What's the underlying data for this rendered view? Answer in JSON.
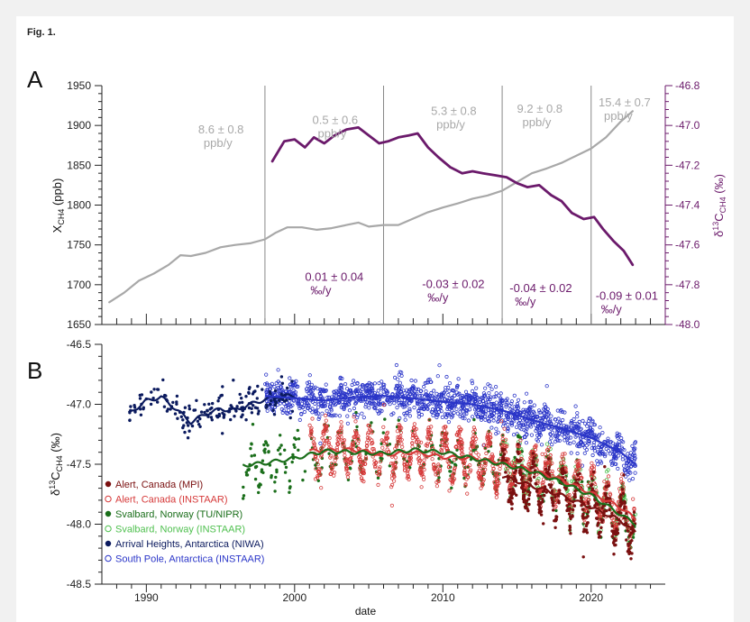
{
  "figure_title": "Fig. 1.",
  "colors": {
    "xch4": "#a8a8a8",
    "d13c": "#6b1a6b",
    "alert_mpi": "#7a1010",
    "alert_instaar": "#d63a3a",
    "svalbard_tu": "#1a6e1a",
    "svalbard_instaar": "#4fc04f",
    "arrival": "#0b1a5e",
    "southpole": "#2a35c8",
    "axis_right": "#6b1a6b"
  },
  "chart_data": [
    {
      "panel": "A",
      "type": "line",
      "x_range": [
        1987,
        2025
      ],
      "y_left": {
        "label": "XCH4 (ppb)",
        "range": [
          1650,
          1950
        ],
        "ticks": [
          "1650",
          "1700",
          "1750",
          "1800",
          "1850",
          "1900",
          "1950"
        ]
      },
      "y_right": {
        "label": "δ13CCH4 (‰)",
        "range": [
          -48.0,
          -46.8
        ],
        "ticks": [
          "-48.0",
          "-47.8",
          "-47.6",
          "-47.4",
          "-47.2",
          "-47.0",
          "-46.8"
        ]
      },
      "period_dividers": [
        1998,
        2006,
        2014,
        2020
      ],
      "series": [
        {
          "axis": "left",
          "x": [
            1987.5,
            1988.5,
            1989.5,
            1990.5,
            1991.5,
            1992.3,
            1993.0,
            1994.0,
            1995.0,
            1996.0,
            1997.0,
            1998.0,
            1998.7,
            1999.5,
            2000.5,
            2001.5,
            2002.5,
            2003.5,
            2004.3,
            2005.0,
            2006.0,
            2007.0,
            2008.0,
            2009.0,
            2010.0,
            2011.0,
            2012.0,
            2013.0,
            2014.0,
            2015.0,
            2016.0,
            2017.0,
            2018.0,
            2019.0,
            2020.0,
            2021.0,
            2022.0,
            2022.8
          ],
          "y": [
            1678,
            1690,
            1705,
            1714,
            1725,
            1737,
            1736,
            1740,
            1747,
            1750,
            1752,
            1757,
            1765,
            1772,
            1772,
            1769,
            1771,
            1775,
            1778,
            1773,
            1775,
            1775,
            1783,
            1791,
            1797,
            1802,
            1808,
            1812,
            1818,
            1829,
            1840,
            1846,
            1853,
            1862,
            1871,
            1885,
            1905,
            1918
          ]
        },
        {
          "axis": "right",
          "x": [
            1998.5,
            1999.3,
            2000.0,
            2000.7,
            2001.3,
            2002.0,
            2002.7,
            2003.5,
            2004.3,
            2005.0,
            2005.7,
            2006.3,
            2007.0,
            2007.7,
            2008.3,
            2009.0,
            2009.7,
            2010.5,
            2011.3,
            2012.0,
            2012.7,
            2013.5,
            2014.3,
            2015.0,
            2015.7,
            2016.5,
            2017.3,
            2018.0,
            2018.7,
            2019.5,
            2020.2,
            2020.8,
            2021.5,
            2022.2,
            2022.8
          ],
          "y": [
            -47.18,
            -47.08,
            -47.07,
            -47.11,
            -47.06,
            -47.09,
            -47.05,
            -47.02,
            -47.01,
            -47.05,
            -47.09,
            -47.08,
            -47.06,
            -47.05,
            -47.04,
            -47.11,
            -47.16,
            -47.21,
            -47.24,
            -47.23,
            -47.24,
            -47.25,
            -47.26,
            -47.29,
            -47.31,
            -47.3,
            -47.35,
            -47.38,
            -47.44,
            -47.47,
            -47.46,
            -47.52,
            -47.58,
            -47.63,
            -47.7
          ]
        }
      ],
      "annotations": [
        {
          "text_lines": [
            "8.6 ± 0.8",
            "ppb/y"
          ],
          "color": "xch4",
          "x": 1993.5,
          "y": 1890
        },
        {
          "text_lines": [
            "0.5 ± 0.6",
            "ppb/y"
          ],
          "color": "xch4",
          "x": 2001.2,
          "y": 1902
        },
        {
          "text_lines": [
            "5.3 ± 0.8",
            "ppb/y"
          ],
          "color": "xch4",
          "x": 2009.2,
          "y": 1913
        },
        {
          "text_lines": [
            "9.2 ± 0.8",
            "ppb/y"
          ],
          "color": "xch4",
          "x": 2015.0,
          "y": 1916
        },
        {
          "text_lines": [
            "15.4 ± 0.7",
            "ppb/y"
          ],
          "color": "xch4",
          "x": 2020.5,
          "y": 1924
        },
        {
          "text_lines": [
            "0.01 ± 0.04",
            "‰/y"
          ],
          "color": "d13c",
          "x": 2000.7,
          "y": 1705
        },
        {
          "text_lines": [
            "-0.03 ± 0.02",
            "‰/y"
          ],
          "color": "d13c",
          "x": 2008.6,
          "y": 1696
        },
        {
          "text_lines": [
            "-0.04 ± 0.02",
            "‰/y"
          ],
          "color": "d13c",
          "x": 2014.5,
          "y": 1691
        },
        {
          "text_lines": [
            "-0.09 ± 0.01",
            "‰/y"
          ],
          "color": "d13c",
          "x": 2020.3,
          "y": 1681
        }
      ]
    },
    {
      "panel": "B",
      "type": "scatter",
      "x_range": [
        1987,
        2025
      ],
      "xlabel": "date",
      "x_ticks": [
        "1990",
        "2000",
        "2010",
        "2020"
      ],
      "y": {
        "label": "δ13CCH4 (‰)",
        "range": [
          -48.5,
          -46.5
        ],
        "ticks": [
          "-48.5",
          "-48.0",
          "-47.5",
          "-47.0",
          "-46.5"
        ]
      },
      "series": [
        {
          "name": "Alert, Canada (MPI)",
          "color": "alert_mpi",
          "marker": "filled",
          "x_start": 2014.0,
          "x_end": 2023.0,
          "trend": [
            [
              2014,
              -47.6
            ],
            [
              2016,
              -47.68
            ],
            [
              2018,
              -47.76
            ],
            [
              2020,
              -47.86
            ],
            [
              2022,
              -47.97
            ],
            [
              2023,
              -48.07
            ]
          ]
        },
        {
          "name": "Alert, Canada (INSTAAR)",
          "color": "alert_instaar",
          "marker": "open",
          "x_start": 2001.0,
          "x_end": 2023.0,
          "trend": [
            [
              2001,
              -47.39
            ],
            [
              2004,
              -47.38
            ],
            [
              2006,
              -47.42
            ],
            [
              2008,
              -47.4
            ],
            [
              2010,
              -47.44
            ],
            [
              2012,
              -47.45
            ],
            [
              2014,
              -47.49
            ],
            [
              2016,
              -47.55
            ],
            [
              2018,
              -47.63
            ],
            [
              2020,
              -47.74
            ],
            [
              2022,
              -47.86
            ],
            [
              2023,
              -47.96
            ]
          ]
        },
        {
          "name": "Svalbard, Norway (TU/NIPR)",
          "color": "svalbard_tu",
          "marker": "filled",
          "x_start": 1996.5,
          "x_end": 2023.0,
          "trend": [
            [
              1996.5,
              -47.51
            ],
            [
              1998,
              -47.49
            ],
            [
              2000,
              -47.45
            ],
            [
              2002,
              -47.39
            ],
            [
              2004,
              -47.4
            ],
            [
              2006,
              -47.41
            ],
            [
              2008,
              -47.38
            ],
            [
              2010,
              -47.4
            ],
            [
              2012,
              -47.45
            ],
            [
              2014,
              -47.5
            ],
            [
              2016,
              -47.56
            ],
            [
              2018,
              -47.65
            ],
            [
              2020,
              -47.76
            ],
            [
              2022,
              -47.92
            ],
            [
              2023,
              -48.0
            ]
          ]
        },
        {
          "name": "Svalbard, Norway (INSTAAR)",
          "color": "svalbard_instaar",
          "marker": "open",
          "x_start": 2014.0,
          "x_end": 2023.0,
          "trend": []
        },
        {
          "name": "Arrival Heights, Antarctica (NIWA)",
          "color": "arrival",
          "marker": "filled",
          "x_start": 1988.8,
          "x_end": 2000.0,
          "trend": [
            [
              1988.8,
              -47.08
            ],
            [
              1990,
              -46.97
            ],
            [
              1991,
              -46.94
            ],
            [
              1992,
              -47.04
            ],
            [
              1993,
              -47.15
            ],
            [
              1994,
              -47.08
            ],
            [
              1995,
              -47.04
            ],
            [
              1996,
              -47.05
            ],
            [
              1997,
              -47.0
            ],
            [
              1998,
              -46.96
            ],
            [
              1999,
              -46.93
            ],
            [
              2000,
              -46.93
            ]
          ]
        },
        {
          "name": "South Pole, Antarctica (INSTAAR)",
          "color": "southpole",
          "marker": "open",
          "x_start": 1998.0,
          "x_end": 2023.0,
          "trend": [
            [
              1998,
              -46.93
            ],
            [
              2000,
              -46.95
            ],
            [
              2002,
              -46.97
            ],
            [
              2004,
              -46.94
            ],
            [
              2006,
              -46.93
            ],
            [
              2008,
              -46.95
            ],
            [
              2010,
              -46.98
            ],
            [
              2012,
              -47.0
            ],
            [
              2014,
              -47.05
            ],
            [
              2016,
              -47.13
            ],
            [
              2018,
              -47.2
            ],
            [
              2020,
              -47.28
            ],
            [
              2022,
              -47.4
            ],
            [
              2023,
              -47.5
            ]
          ]
        }
      ]
    }
  ],
  "panel_labels": {
    "a": "A",
    "b": "B"
  }
}
